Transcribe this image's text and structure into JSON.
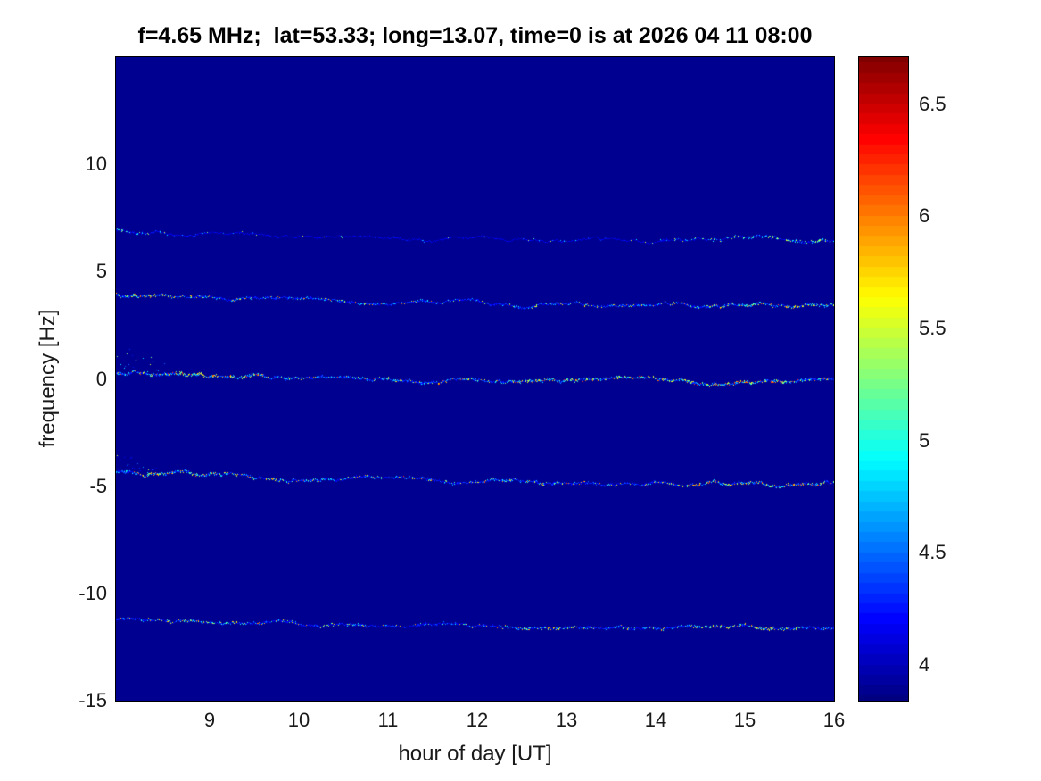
{
  "chart_data": {
    "type": "heatmap",
    "title": "f=4.65 MHz;  lat=53.33; long=13.07, time=0 is at 2026 04 11 08:00",
    "xlabel": "hour of day [UT]",
    "ylabel": "frequency [Hz]",
    "xlim": [
      7.95,
      16
    ],
    "ylim": [
      -15,
      15
    ],
    "xticks": [
      9,
      10,
      11,
      12,
      13,
      14,
      15,
      16
    ],
    "yticks": [
      10,
      5,
      0,
      -5,
      -10,
      -15
    ],
    "grid": false,
    "legend": "none",
    "colormap": "jet",
    "colormap_levels": 64,
    "background_value": 3.88,
    "colorbar": {
      "position": "right",
      "min": 3.84,
      "max": 6.71,
      "ticks": [
        6.5,
        6,
        5.5,
        5,
        4.5,
        4
      ]
    },
    "spectral_lines": [
      {
        "name": "second-upper-harmonic",
        "freq_start_hz": 6.95,
        "freq_end_hz": 6.45,
        "base_value": 4.0,
        "peak_value": 5.6,
        "density_profile": [
          [
            7.95,
            0.7
          ],
          [
            8.6,
            0.4
          ],
          [
            9.6,
            0.12
          ],
          [
            13.8,
            0.15
          ],
          [
            14.5,
            0.55
          ],
          [
            16,
            0.7
          ]
        ],
        "hot_regions": [
          [
            14.6,
            16
          ]
        ]
      },
      {
        "name": "first-upper-harmonic",
        "freq_start_hz": 3.98,
        "freq_end_hz": 3.45,
        "base_value": 4.15,
        "peak_value": 6.1,
        "density_profile": [
          [
            7.95,
            0.85
          ],
          [
            9.5,
            0.65
          ],
          [
            12,
            0.55
          ],
          [
            14,
            0.65
          ],
          [
            16,
            0.8
          ]
        ],
        "hot_regions": [
          [
            8.05,
            8.8
          ],
          [
            14.6,
            16
          ]
        ]
      },
      {
        "name": "carrier-line",
        "freq_start_hz": 0.3,
        "freq_end_hz": -0.15,
        "base_value": 4.2,
        "peak_value": 6.3,
        "density_profile": [
          [
            7.95,
            0.9
          ],
          [
            10.5,
            0.75
          ],
          [
            16,
            0.85
          ]
        ],
        "hot_regions": [
          [
            8.6,
            9.6
          ],
          [
            12.4,
            15.6
          ]
        ],
        "start_transient": {
          "until_hour": 8.8,
          "rise_hz": 1.6
        }
      },
      {
        "name": "first-lower-harmonic",
        "freq_start_hz": -4.3,
        "freq_end_hz": -4.95,
        "base_value": 4.15,
        "peak_value": 6.2,
        "density_profile": [
          [
            7.95,
            0.85
          ],
          [
            11,
            0.65
          ],
          [
            14,
            0.7
          ],
          [
            16,
            0.8
          ]
        ],
        "hot_regions": [
          [
            8.15,
            9.4
          ],
          [
            14.3,
            15.9
          ]
        ],
        "start_transient": {
          "until_hour": 8.6,
          "rise_hz": 1.0
        }
      },
      {
        "name": "second-lower-harmonic",
        "freq_start_hz": -11.15,
        "freq_end_hz": -11.62,
        "base_value": 4.1,
        "peak_value": 6.0,
        "density_profile": [
          [
            7.95,
            0.8
          ],
          [
            11,
            0.6
          ],
          [
            16,
            0.75
          ]
        ],
        "hot_regions": [
          [
            8.4,
            9.3
          ],
          [
            12.3,
            13.1
          ],
          [
            14.4,
            15.6
          ]
        ]
      }
    ]
  }
}
